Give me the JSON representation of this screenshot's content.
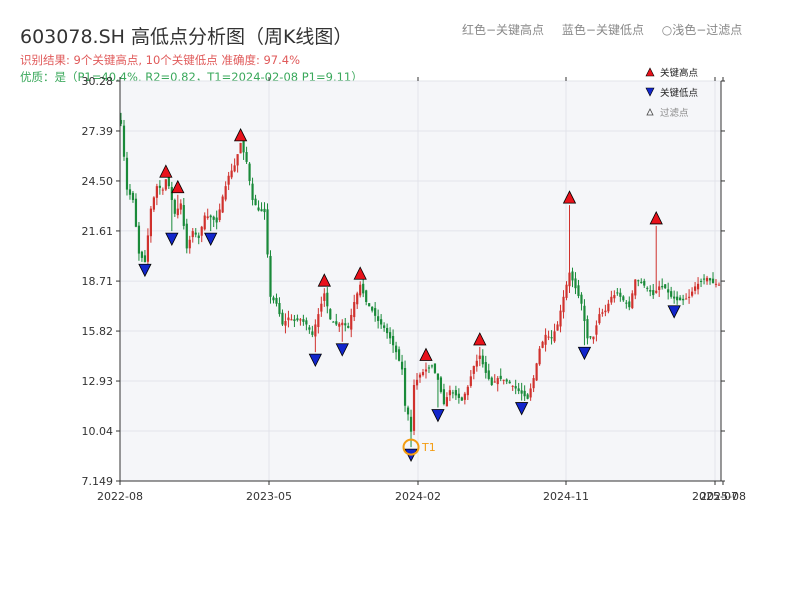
{
  "header": {
    "title": "603078.SH 高低点分析图（周K线图）",
    "subtitle": "识别结果: 9个关键高点, 10个关键低点   准确度: 97.4%",
    "quality": "优质：是（P1=40.4%, R2=0.82，T1=2024-02-08 P1=9.11）"
  },
  "top_legend": {
    "high": "红色−关键高点",
    "low": "蓝色−关键低点",
    "filtered": "○浅色−过滤点"
  },
  "colors": {
    "up": "#d0312d",
    "down": "#1a8a3a",
    "high_marker": "#e8121b",
    "low_marker": "#1226cc",
    "t1_circle": "#f39c12",
    "plot_bg": "#f5f6f9",
    "grid": "#e2e4ea"
  },
  "chart_data": {
    "type": "candlestick",
    "title": "603078.SH 高低点分析图（周K线图）",
    "y_ticks": [
      "7.149",
      "10.04",
      "12.93",
      "15.82",
      "18.71",
      "21.61",
      "24.50",
      "27.39",
      "30.28"
    ],
    "ylim": [
      7.149,
      30.28
    ],
    "x_tick_labels": [
      "2022-08",
      "2023-05",
      "2024-02",
      "2024-11",
      "2025-07",
      "2025-08"
    ],
    "grid": true,
    "legend": {
      "position": "top-right",
      "items": [
        {
          "label": "关键高点",
          "icon": "red-up-triangle"
        },
        {
          "label": "关键低点",
          "icon": "blue-down-triangle"
        },
        {
          "label": "过滤点",
          "icon": "hollow-up-triangle"
        }
      ]
    },
    "close_anchors": [
      [
        0,
        27.8
      ],
      [
        2,
        24.0
      ],
      [
        4,
        23.4
      ],
      [
        6,
        20.3
      ],
      [
        8,
        19.8
      ],
      [
        10,
        22.9
      ],
      [
        12,
        24.2
      ],
      [
        14,
        24.0
      ],
      [
        15,
        24.6
      ],
      [
        16,
        24.2
      ],
      [
        18,
        22.6
      ],
      [
        20,
        23.2
      ],
      [
        22,
        20.6
      ],
      [
        24,
        21.6
      ],
      [
        26,
        21.2
      ],
      [
        28,
        22.5
      ],
      [
        30,
        22.4
      ],
      [
        32,
        22.1
      ],
      [
        34,
        23.6
      ],
      [
        36,
        24.8
      ],
      [
        38,
        25.4
      ],
      [
        40,
        26.7
      ],
      [
        42,
        25.6
      ],
      [
        44,
        23.4
      ],
      [
        46,
        22.8
      ],
      [
        48,
        22.7
      ],
      [
        50,
        17.8
      ],
      [
        52,
        17.4
      ],
      [
        54,
        16.2
      ],
      [
        56,
        16.6
      ],
      [
        58,
        16.4
      ],
      [
        60,
        16.5
      ],
      [
        62,
        16.2
      ],
      [
        64,
        15.6
      ],
      [
        66,
        16.8
      ],
      [
        68,
        18.0
      ],
      [
        70,
        16.5
      ],
      [
        72,
        16.2
      ],
      [
        74,
        16.3
      ],
      [
        76,
        16.0
      ],
      [
        78,
        17.5
      ],
      [
        80,
        18.5
      ],
      [
        82,
        17.5
      ],
      [
        84,
        17.0
      ],
      [
        86,
        16.4
      ],
      [
        88,
        16.0
      ],
      [
        90,
        15.4
      ],
      [
        92,
        14.6
      ],
      [
        94,
        13.6
      ],
      [
        95,
        11.5
      ],
      [
        96,
        11.0
      ],
      [
        97,
        10.0
      ],
      [
        98,
        12.7
      ],
      [
        100,
        13.3
      ],
      [
        102,
        13.6
      ],
      [
        104,
        13.8
      ],
      [
        106,
        13.0
      ],
      [
        107,
        12.3
      ],
      [
        108,
        11.6
      ],
      [
        110,
        12.4
      ],
      [
        112,
        12.1
      ],
      [
        114,
        11.8
      ],
      [
        116,
        12.6
      ],
      [
        118,
        13.8
      ],
      [
        120,
        14.4
      ],
      [
        122,
        13.4
      ],
      [
        124,
        12.7
      ],
      [
        126,
        13.1
      ],
      [
        128,
        13.0
      ],
      [
        130,
        12.8
      ],
      [
        132,
        12.5
      ],
      [
        134,
        12.2
      ],
      [
        136,
        11.9
      ],
      [
        138,
        13.1
      ],
      [
        140,
        14.8
      ],
      [
        142,
        15.6
      ],
      [
        144,
        15.4
      ],
      [
        146,
        16.2
      ],
      [
        148,
        17.8
      ],
      [
        150,
        19.2
      ],
      [
        152,
        18.3
      ],
      [
        154,
        17.4
      ],
      [
        156,
        15.4
      ],
      [
        158,
        15.5
      ],
      [
        160,
        16.8
      ],
      [
        162,
        17.0
      ],
      [
        164,
        17.8
      ],
      [
        166,
        18.0
      ],
      [
        168,
        17.6
      ],
      [
        170,
        17.2
      ],
      [
        172,
        18.8
      ],
      [
        174,
        18.6
      ],
      [
        176,
        18.3
      ],
      [
        178,
        17.9
      ],
      [
        180,
        18.4
      ],
      [
        182,
        18.3
      ],
      [
        184,
        17.8
      ],
      [
        186,
        17.6
      ],
      [
        188,
        17.6
      ],
      [
        190,
        17.8
      ],
      [
        192,
        18.4
      ],
      [
        194,
        18.7
      ],
      [
        196,
        18.9
      ],
      [
        198,
        18.6
      ],
      [
        200,
        18.5
      ]
    ],
    "key_highs": [
      {
        "i": 15,
        "v": 24.6
      },
      {
        "i": 19,
        "v": 23.7
      },
      {
        "i": 40,
        "v": 26.7
      },
      {
        "i": 68,
        "v": 18.3
      },
      {
        "i": 80,
        "v": 18.7
      },
      {
        "i": 102,
        "v": 14.0
      },
      {
        "i": 120,
        "v": 14.9
      },
      {
        "i": 150,
        "v": 23.1
      },
      {
        "i": 179,
        "v": 21.9
      }
    ],
    "key_lows": [
      {
        "i": 8,
        "v": 19.8
      },
      {
        "i": 17,
        "v": 21.6
      },
      {
        "i": 30,
        "v": 21.6
      },
      {
        "i": 65,
        "v": 14.6
      },
      {
        "i": 74,
        "v": 15.2
      },
      {
        "i": 97,
        "v": 9.11
      },
      {
        "i": 106,
        "v": 11.4
      },
      {
        "i": 134,
        "v": 11.8
      },
      {
        "i": 155,
        "v": 15.0
      },
      {
        "i": 185,
        "v": 17.4
      }
    ],
    "t1": {
      "i": 97,
      "v": 9.11,
      "label": "T1"
    },
    "n_bars": 201
  }
}
